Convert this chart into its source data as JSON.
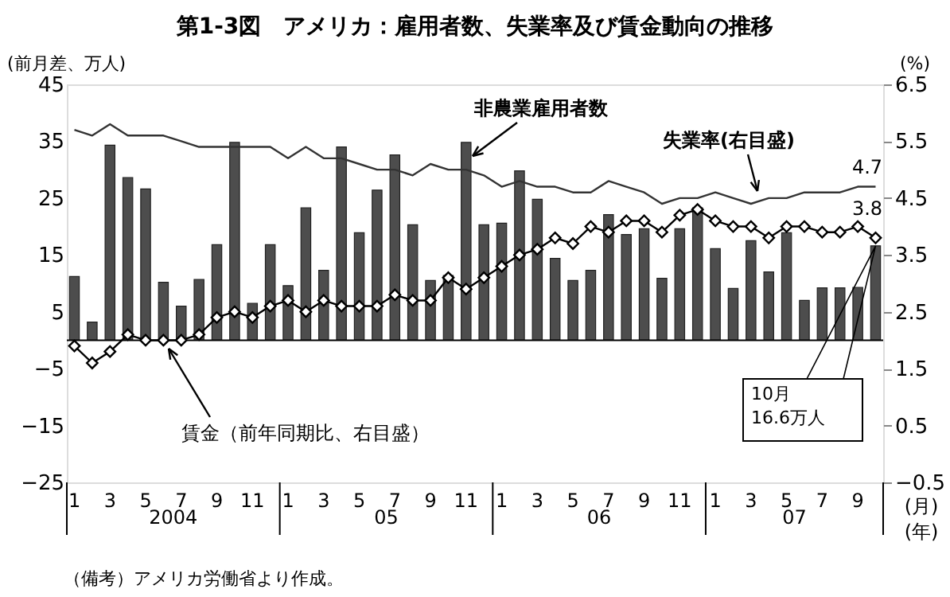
{
  "chart_data": {
    "type": "bar",
    "title": "第1-3図　アメリカ：雇用者数、失業率及び賃金動向の推移",
    "ylabel": "(前月差、万人)",
    "y2label": "(%)",
    "categories": [
      "1",
      null,
      "3",
      null,
      "5",
      null,
      "7",
      null,
      "9",
      null,
      "11",
      null,
      "1",
      null,
      "3",
      null,
      "5",
      null,
      "7",
      null,
      "9",
      null,
      "11",
      null,
      "1",
      null,
      "3",
      null,
      "5",
      null,
      "7",
      null,
      "9",
      null,
      "11",
      null,
      "1",
      null,
      "3",
      null,
      "5",
      null,
      "7",
      null,
      "9",
      null
    ],
    "series": [
      {
        "name": "非農業雇用者数",
        "type": "bar",
        "color": "#4d4d4d",
        "values": [
          11.2,
          3.2,
          34.3,
          28.6,
          26.6,
          10.2,
          6.0,
          10.7,
          16.8,
          34.8,
          6.5,
          16.8,
          9.6,
          23.3,
          12.3,
          34.0,
          18.9,
          26.4,
          32.6,
          20.3,
          10.5,
          11.4,
          34.8,
          20.3,
          20.6,
          29.8,
          24.8,
          14.4,
          10.5,
          12.3,
          22.1,
          18.6,
          19.6,
          10.9,
          19.6,
          23.3,
          16.1,
          9.1,
          17.5,
          12.0,
          18.9,
          7.0,
          9.2,
          9.2,
          9.3,
          16.6
        ]
      },
      {
        "name": "失業率(右目盛)",
        "type": "line",
        "axis": "y2",
        "marker": "none",
        "color": "#333333",
        "values": [
          5.7,
          5.6,
          5.8,
          5.6,
          5.6,
          5.6,
          5.5,
          5.4,
          5.4,
          5.4,
          5.4,
          5.4,
          5.2,
          5.4,
          5.2,
          5.2,
          5.1,
          5.0,
          5.0,
          4.9,
          5.1,
          5.0,
          5.0,
          4.9,
          4.7,
          4.8,
          4.7,
          4.7,
          4.6,
          4.6,
          4.8,
          4.7,
          4.6,
          4.4,
          4.5,
          4.5,
          4.6,
          4.5,
          4.4,
          4.5,
          4.5,
          4.6,
          4.6,
          4.6,
          4.7,
          4.7
        ]
      },
      {
        "name": "賃金（前年同期比、右目盛）",
        "type": "line",
        "axis": "y2",
        "marker": "diamond",
        "color": "#000000",
        "values": [
          1.9,
          1.6,
          1.8,
          2.1,
          2.0,
          2.0,
          2.0,
          2.1,
          2.4,
          2.5,
          2.4,
          2.6,
          2.7,
          2.5,
          2.7,
          2.6,
          2.6,
          2.6,
          2.8,
          2.7,
          2.7,
          3.1,
          2.9,
          3.1,
          3.3,
          3.5,
          3.6,
          3.8,
          3.7,
          4.0,
          3.9,
          4.1,
          4.1,
          3.9,
          4.2,
          4.3,
          4.1,
          4.0,
          4.0,
          3.8,
          4.0,
          4.0,
          3.9,
          3.9,
          4.0,
          3.8
        ]
      }
    ],
    "ylim": [
      -25,
      45
    ],
    "yticks": [
      -25,
      -15,
      -5,
      5,
      15,
      25,
      35,
      45
    ],
    "y2lim": [
      -0.5,
      6.5
    ],
    "y2ticks": [
      -0.5,
      0.5,
      1.5,
      2.5,
      3.5,
      4.5,
      5.5,
      6.5
    ],
    "ref_lines": [
      {
        "axis": "y",
        "value": 0,
        "color": "#000000"
      }
    ],
    "legend": false,
    "grid": false,
    "annotations": [
      "2004",
      "05",
      "06",
      "07",
      "(月)",
      "(年)",
      "4.7",
      "3.8",
      "10月\n16.6万人",
      "（備考）アメリカ労働省より作成。"
    ]
  }
}
